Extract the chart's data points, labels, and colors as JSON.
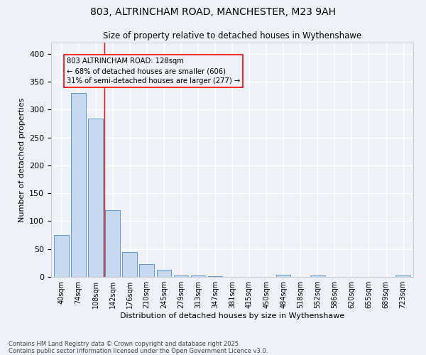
{
  "title_line1": "803, ALTRINCHAM ROAD, MANCHESTER, M23 9AH",
  "title_line2": "Size of property relative to detached houses in Wythenshawe",
  "xlabel": "Distribution of detached houses by size in Wythenshawe",
  "ylabel": "Number of detached properties",
  "bar_color": "#c5d8ed",
  "bar_edge_color": "#5b9bd5",
  "categories": [
    "40sqm",
    "74sqm",
    "108sqm",
    "142sqm",
    "176sqm",
    "210sqm",
    "245sqm",
    "279sqm",
    "313sqm",
    "347sqm",
    "381sqm",
    "415sqm",
    "450sqm",
    "484sqm",
    "518sqm",
    "552sqm",
    "586sqm",
    "620sqm",
    "655sqm",
    "689sqm",
    "723sqm"
  ],
  "values": [
    75,
    330,
    284,
    120,
    45,
    23,
    13,
    3,
    2,
    1,
    0,
    0,
    0,
    4,
    0,
    3,
    0,
    0,
    0,
    0,
    2
  ],
  "ylim": [
    0,
    420
  ],
  "yticks": [
    0,
    50,
    100,
    150,
    200,
    250,
    300,
    350,
    400
  ],
  "property_line_x": 2.5,
  "annotation_text": "803 ALTRINCHAM ROAD: 128sqm\n← 68% of detached houses are smaller (606)\n31% of semi-detached houses are larger (277) →",
  "footer_text": "Contains HM Land Registry data © Crown copyright and database right 2025.\nContains public sector information licensed under the Open Government Licence v3.0.",
  "background_color": "#eef2f8",
  "grid_color": "#ffffff",
  "bar_width": 0.85
}
